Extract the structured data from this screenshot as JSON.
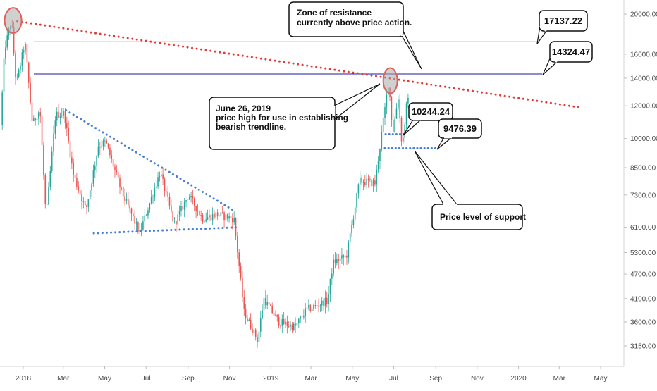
{
  "chart_data": {
    "type": "candlestick",
    "scale": "log",
    "grid": false,
    "colors": {
      "up": "#26a69a",
      "down": "#ef5350",
      "resistance_line": "#1a1aa8",
      "bearish_trendline": "#e53935",
      "triangle_lines": "#4a7fd1",
      "support_dots": "#4a7fd1",
      "highlight_circle": "#e0605a"
    },
    "y_ticks": [
      "20000.00",
      "16000.00",
      "14000.00",
      "12000.00",
      "10000.00",
      "8500.00",
      "7300.00",
      "6100.00",
      "5300.00",
      "4700.00",
      "4100.00",
      "3600.00",
      "3150.00"
    ],
    "y_tick_values": [
      20000,
      16000,
      14000,
      12000,
      10000,
      8500,
      7300,
      6100,
      5300,
      4700,
      4100,
      3600,
      3150
    ],
    "x_ticks": [
      "2018",
      "Mar",
      "May",
      "Jul",
      "Sep",
      "Nov",
      "2019",
      "Mar",
      "May",
      "Jul",
      "Sep",
      "Nov",
      "2020",
      "Mar",
      "May"
    ],
    "x_tick_dates": [
      "2018-01-01",
      "2018-03-01",
      "2018-05-01",
      "2018-07-01",
      "2018-09-01",
      "2018-11-01",
      "2019-01-01",
      "2019-03-01",
      "2019-05-01",
      "2019-07-01",
      "2019-09-01",
      "2019-11-01",
      "2020-01-01",
      "2020-03-01",
      "2020-05-01"
    ],
    "x_range": [
      "2017-12-01",
      "2020-06-10"
    ],
    "y_range": [
      2950,
      23000
    ],
    "price_path": [
      [
        "2017-12-01",
        10800
      ],
      [
        "2017-12-07",
        16500
      ],
      [
        "2017-12-17",
        19300
      ],
      [
        "2017-12-24",
        13500
      ],
      [
        "2018-01-06",
        17100
      ],
      [
        "2018-01-17",
        10800
      ],
      [
        "2018-01-28",
        11800
      ],
      [
        "2018-02-06",
        6400
      ],
      [
        "2018-02-20",
        11400
      ],
      [
        "2018-03-05",
        11500
      ],
      [
        "2018-03-18",
        8200
      ],
      [
        "2018-04-06",
        6700
      ],
      [
        "2018-04-24",
        9600
      ],
      [
        "2018-05-05",
        9800
      ],
      [
        "2018-05-29",
        7400
      ],
      [
        "2018-06-24",
        5900
      ],
      [
        "2018-07-24",
        8300
      ],
      [
        "2018-08-14",
        6200
      ],
      [
        "2018-09-04",
        7300
      ],
      [
        "2018-09-25",
        6400
      ],
      [
        "2018-10-15",
        6550
      ],
      [
        "2018-11-10",
        6400
      ],
      [
        "2018-11-25",
        3800
      ],
      [
        "2018-12-15",
        3250
      ],
      [
        "2018-12-24",
        4100
      ],
      [
        "2019-01-15",
        3600
      ],
      [
        "2019-02-08",
        3500
      ],
      [
        "2019-02-25",
        3850
      ],
      [
        "2019-03-28",
        4050
      ],
      [
        "2019-04-05",
        5000
      ],
      [
        "2019-04-25",
        5200
      ],
      [
        "2019-05-14",
        7900
      ],
      [
        "2019-06-06",
        7800
      ],
      [
        "2019-06-26",
        13800
      ],
      [
        "2019-07-02",
        10300
      ],
      [
        "2019-07-10",
        12600
      ],
      [
        "2019-07-16",
        9500
      ],
      [
        "2019-07-23",
        12300
      ]
    ],
    "resistance_levels": [
      {
        "label": "17137.22",
        "value": 17137.22
      },
      {
        "label": "14324.47",
        "value": 14324.47
      }
    ],
    "support_levels": [
      {
        "label": "10244.24",
        "value": 10244.24
      },
      {
        "label": "9476.39",
        "value": 9476.39
      }
    ],
    "bearish_trendline": {
      "from": [
        "2017-12-17",
        19300
      ],
      "to": [
        "2020-03-30",
        11900
      ]
    },
    "triangle_upper": {
      "from": [
        "2018-03-05",
        11700
      ],
      "to": [
        "2018-11-07",
        6700
      ]
    },
    "triangle_lower": {
      "from": [
        "2018-04-15",
        5900
      ],
      "to": [
        "2018-11-14",
        6100
      ]
    },
    "highlight_points": [
      {
        "date": "2017-12-17",
        "value": 19300
      },
      {
        "date": "2019-06-26",
        "value": 13800
      }
    ],
    "annotations": {
      "resistance_note": [
        "Zone of resistance",
        "currently above price action."
      ],
      "june_note": [
        "June 26, 2019",
        "price high for use in establishing",
        "bearish trendline."
      ],
      "support_note": [
        "Price level of support"
      ]
    }
  }
}
